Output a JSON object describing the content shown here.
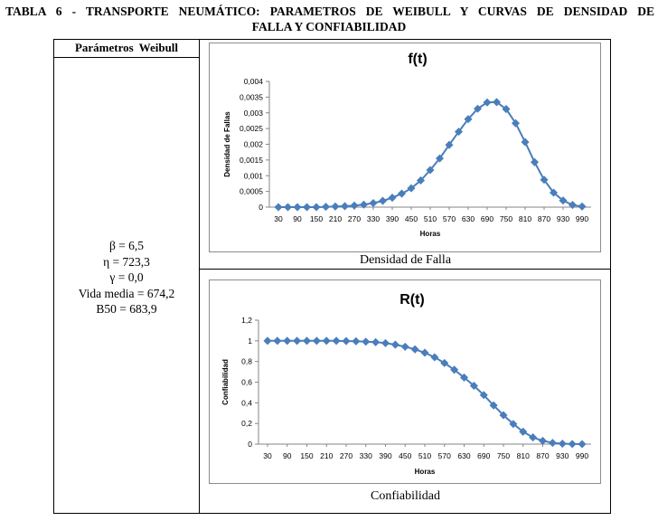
{
  "document": {
    "title_line1": "TABLA 6 - TRANSPORTE NEUMÁTICO: PARAMETROS DE WEIBULL Y CURVAS DE DENSIDAD DE",
    "title_line2": "FALLA Y CONFIABILIDAD"
  },
  "table": {
    "left_header": "Parámetros Weibull",
    "parameters": [
      "β = 6,5",
      "η = 723,3",
      "γ = 0,0",
      "Vida media = 674,2",
      "B50 = 683,9"
    ],
    "caption_top": "Densidad de Falla",
    "caption_bottom": "Confiabilidad"
  },
  "chart_data": [
    {
      "type": "line",
      "title": "f(t)",
      "xlabel": "Horas",
      "ylabel": "Densidad de Fallas",
      "x": [
        30,
        60,
        90,
        120,
        150,
        180,
        210,
        240,
        270,
        300,
        330,
        360,
        390,
        420,
        450,
        480,
        510,
        540,
        570,
        600,
        630,
        660,
        690,
        720,
        750,
        780,
        810,
        840,
        870,
        900,
        930,
        960,
        990
      ],
      "x_tick_labels": [
        "30",
        "90",
        "150",
        "210",
        "270",
        "330",
        "390",
        "450",
        "510",
        "570",
        "630",
        "690",
        "750",
        "810",
        "870",
        "930",
        "990"
      ],
      "y_tick_labels": [
        "0",
        "0,0005",
        "0,001",
        "0,0015",
        "0,002",
        "0,0025",
        "0,003",
        "0,0035",
        "0,004"
      ],
      "ylim": [
        0,
        0.004
      ],
      "series": [
        {
          "name": "f(t)",
          "color": "#4a7ebb",
          "values": [
            0,
            0,
            0,
            0,
            0,
            1e-05,
            2e-05,
            3e-05,
            5e-05,
            8e-05,
            0.00013,
            0.0002,
            0.0003,
            0.00043,
            0.0006,
            0.00085,
            0.00118,
            0.00155,
            0.00198,
            0.0024,
            0.0028,
            0.00313,
            0.00333,
            0.00334,
            0.00312,
            0.00267,
            0.00207,
            0.00143,
            0.00087,
            0.00046,
            0.00021,
            7e-05,
            2e-05
          ]
        }
      ]
    },
    {
      "type": "line",
      "title": "R(t)",
      "xlabel": "Horas",
      "ylabel": "Confiabilidad",
      "x": [
        30,
        60,
        90,
        120,
        150,
        180,
        210,
        240,
        270,
        300,
        330,
        360,
        390,
        420,
        450,
        480,
        510,
        540,
        570,
        600,
        630,
        660,
        690,
        720,
        750,
        780,
        810,
        840,
        870,
        900,
        930,
        960,
        990
      ],
      "x_tick_labels": [
        "30",
        "90",
        "150",
        "210",
        "270",
        "330",
        "390",
        "450",
        "510",
        "570",
        "630",
        "690",
        "750",
        "810",
        "870",
        "930",
        "990"
      ],
      "y_tick_labels": [
        "0",
        "0,2",
        "0,4",
        "0,6",
        "0,8",
        "1",
        "1,2"
      ],
      "ylim": [
        0,
        1.2
      ],
      "series": [
        {
          "name": "R(t)",
          "color": "#4a7ebb",
          "values": [
            1,
            1,
            1,
            1,
            1,
            1,
            1,
            1,
            0.998,
            0.996,
            0.992,
            0.987,
            0.978,
            0.963,
            0.943,
            0.918,
            0.885,
            0.841,
            0.785,
            0.72,
            0.645,
            0.565,
            0.475,
            0.375,
            0.28,
            0.195,
            0.12,
            0.065,
            0.032,
            0.012,
            0.004,
            0.001,
            0
          ]
        }
      ]
    }
  ],
  "colors": {
    "series": "#4a7ebb",
    "grid_frame": "#8c8c8c",
    "axis": "#868686"
  }
}
